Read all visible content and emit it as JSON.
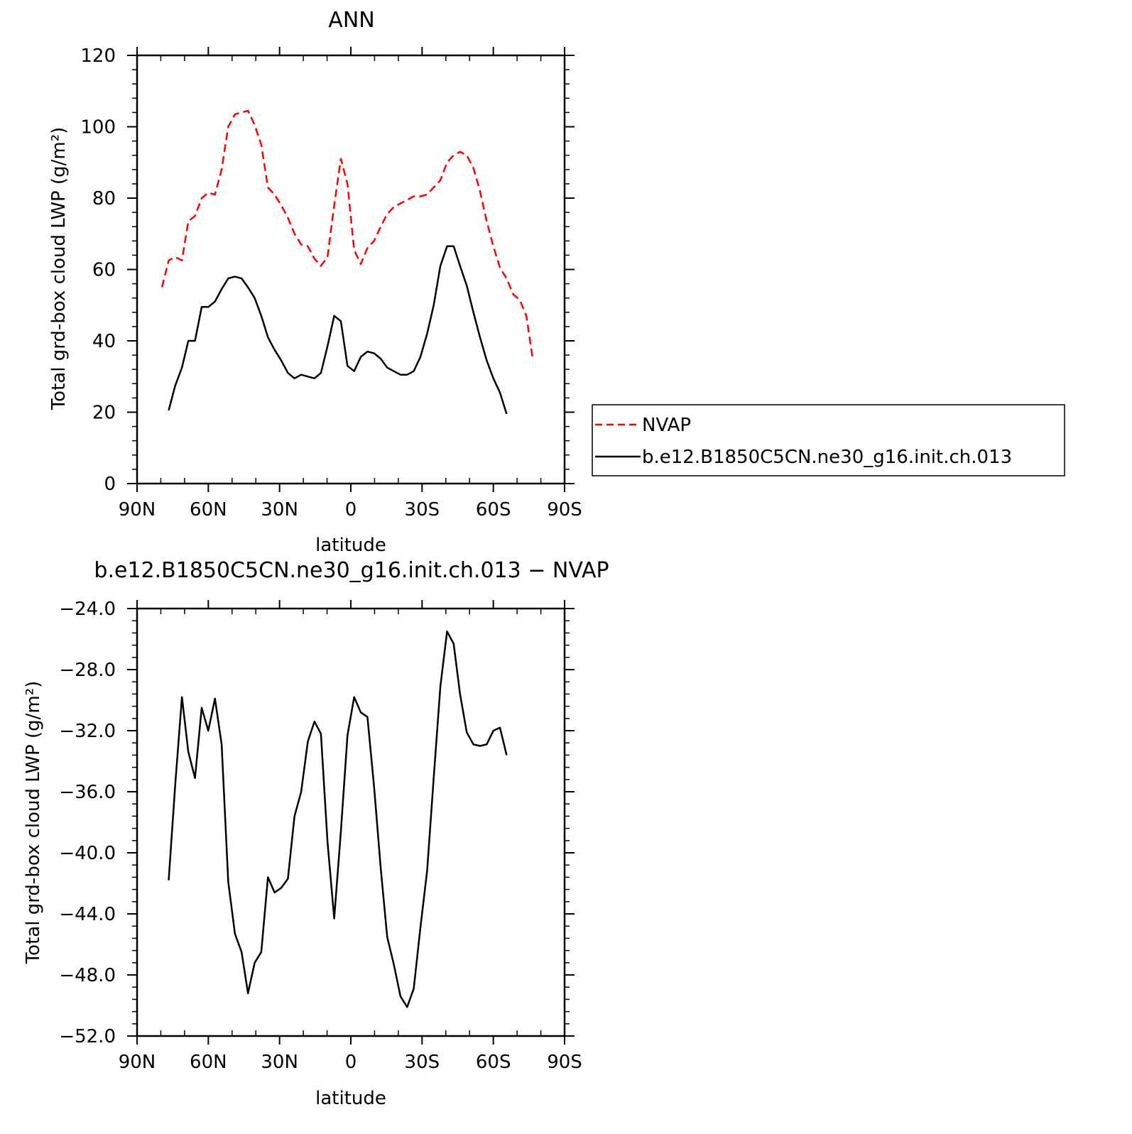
{
  "chart_data": [
    {
      "type": "line",
      "title": "ANN",
      "xlabel": "latitude",
      "ylabel": "Total grd-box cloud LWP (g/m²)",
      "xlim": [
        90,
        -90
      ],
      "ylim": [
        0,
        120
      ],
      "x_ticks": [
        90,
        60,
        30,
        0,
        -30,
        -60,
        -90
      ],
      "x_tick_labels": [
        "90N",
        "60N",
        "30N",
        "0",
        "30S",
        "60S",
        "90S"
      ],
      "y_ticks": [
        0,
        20,
        40,
        60,
        80,
        100,
        120
      ],
      "y_tick_labels": [
        "0",
        "20",
        "40",
        "60",
        "80",
        "100",
        "120"
      ],
      "legend_position": "right",
      "series": [
        {
          "name": "NVAP",
          "color": "#ff0000",
          "dash": "dashed",
          "x": [
            79.5,
            76.7,
            73.9,
            71.1,
            68.4,
            65.6,
            62.8,
            60.0,
            57.2,
            54.4,
            51.6,
            48.8,
            46.0,
            43.3,
            40.5,
            37.7,
            34.9,
            32.1,
            29.3,
            26.5,
            23.7,
            20.9,
            18.1,
            15.3,
            12.6,
            9.8,
            7.0,
            4.2,
            1.4,
            -1.4,
            -4.2,
            -7.0,
            -9.8,
            -12.6,
            -15.3,
            -18.1,
            -20.9,
            -23.7,
            -26.5,
            -29.3,
            -32.1,
            -34.9,
            -37.7,
            -40.5,
            -43.3,
            -46.0,
            -48.8,
            -51.6,
            -54.4,
            -57.2,
            -60.0,
            -62.8,
            -65.6,
            -68.4,
            -71.1,
            -73.9,
            -76.7
          ],
          "y": [
            55,
            62.5,
            63.5,
            62.5,
            73.5,
            75,
            80,
            81.5,
            81,
            88,
            100,
            103.5,
            104,
            104.5,
            100.5,
            95,
            83,
            81,
            78,
            74.5,
            70,
            67,
            66.5,
            63,
            61,
            63.5,
            78,
            91,
            84,
            65.5,
            61.5,
            66,
            68,
            72,
            75.5,
            77.5,
            78.5,
            79.5,
            80.5,
            80.5,
            81,
            83,
            85,
            90,
            92,
            93,
            92,
            88.5,
            82,
            73.5,
            66.5,
            60.5,
            57.5,
            53,
            51.5,
            47,
            34.5
          ]
        },
        {
          "name": "b.e12.B1850C5CN.ne30_g16.init.ch.013",
          "color": "#000000",
          "dash": "solid",
          "x": [
            76.7,
            73.9,
            71.1,
            68.4,
            65.6,
            62.8,
            60.0,
            57.2,
            54.4,
            51.6,
            48.8,
            46.0,
            43.3,
            40.5,
            37.7,
            34.9,
            32.1,
            29.3,
            26.5,
            23.7,
            20.9,
            18.1,
            15.3,
            12.6,
            9.8,
            7.0,
            4.2,
            1.4,
            -1.4,
            -4.2,
            -7.0,
            -9.8,
            -12.6,
            -15.3,
            -18.1,
            -20.9,
            -23.7,
            -26.5,
            -29.3,
            -32.1,
            -34.9,
            -37.7,
            -40.5,
            -43.3,
            -46.0,
            -48.8,
            -51.6,
            -54.4,
            -57.2,
            -60.0,
            -62.8,
            -65.6
          ],
          "y": [
            20.5,
            27.5,
            32.5,
            40,
            40,
            49.5,
            49.5,
            51,
            54.5,
            57.5,
            58,
            57.5,
            55,
            52,
            47,
            41,
            37.5,
            34.5,
            31,
            29.5,
            30.5,
            30,
            29.5,
            31,
            38.5,
            47,
            45.5,
            33,
            31.5,
            35.5,
            37,
            36.5,
            35,
            32.5,
            31.5,
            30.5,
            30.5,
            31.5,
            35.5,
            42,
            50,
            61,
            66.5,
            66.5,
            61,
            55.5,
            48,
            41,
            34.5,
            29.5,
            25.5,
            19.5
          ]
        }
      ]
    },
    {
      "type": "line",
      "title": "b.e12.B1850C5CN.ne30_g16.init.ch.013 − NVAP",
      "xlabel": "latitude",
      "ylabel": "Total grd-box cloud LWP (g/m²)",
      "xlim": [
        90,
        -90
      ],
      "ylim": [
        -52,
        -24
      ],
      "x_ticks": [
        90,
        60,
        30,
        0,
        -30,
        -60,
        -90
      ],
      "x_tick_labels": [
        "90N",
        "60N",
        "30N",
        "0",
        "30S",
        "60S",
        "90S"
      ],
      "y_ticks": [
        -52,
        -48,
        -44,
        -40,
        -36,
        -32,
        -28,
        -24
      ],
      "y_tick_labels": [
        "−52.0",
        "−48.0",
        "−44.0",
        "−40.0",
        "−36.0",
        "−32.0",
        "−28.0",
        "−24.0"
      ],
      "series": [
        {
          "color": "#000000",
          "dash": "solid",
          "x": [
            76.7,
            73.9,
            71.1,
            68.4,
            65.6,
            62.8,
            60.0,
            57.2,
            54.4,
            51.6,
            48.8,
            46.0,
            43.3,
            40.5,
            37.7,
            34.9,
            32.1,
            29.3,
            26.5,
            23.7,
            20.9,
            18.1,
            15.3,
            12.6,
            9.8,
            7.0,
            4.2,
            1.4,
            -1.4,
            -4.2,
            -7.0,
            -9.8,
            -12.6,
            -15.3,
            -18.1,
            -20.9,
            -23.7,
            -26.5,
            -29.3,
            -32.1,
            -34.9,
            -37.7,
            -40.5,
            -43.3,
            -46.0,
            -48.8,
            -51.6,
            -54.4,
            -57.2,
            -60.0,
            -62.8,
            -65.6
          ],
          "y": [
            -41.8,
            -35.5,
            -29.8,
            -33.4,
            -35.1,
            -30.5,
            -32,
            -29.9,
            -32.9,
            -41.9,
            -45.3,
            -46.5,
            -49.2,
            -47.2,
            -46.5,
            -41.6,
            -42.6,
            -42.3,
            -41.7,
            -37.6,
            -36,
            -32.7,
            -31.4,
            -32.2,
            -39.3,
            -44.3,
            -38.6,
            -32.3,
            -29.8,
            -30.8,
            -31.1,
            -35.7,
            -41,
            -45.5,
            -47.3,
            -49.4,
            -50.1,
            -48.9,
            -44.9,
            -41.2,
            -35.1,
            -29.1,
            -25.5,
            -26.3,
            -29.6,
            -32.1,
            -32.9,
            -33,
            -32.9,
            -32,
            -31.8,
            -33.6
          ]
        }
      ]
    }
  ]
}
